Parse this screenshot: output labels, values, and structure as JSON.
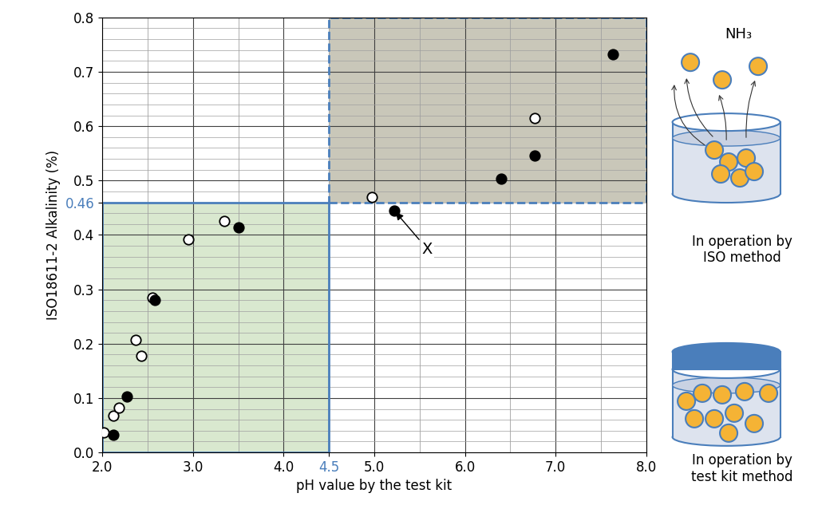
{
  "chart_data": {
    "type": "scatter",
    "x_label": "pH value by the test kit",
    "y_label": "ISO18611-2 Alkalinity (%)",
    "xlim": [
      2.0,
      8.0
    ],
    "ylim": [
      0.0,
      0.8
    ],
    "xticks": [
      2.0,
      3.0,
      4.0,
      4.5,
      5.0,
      6.0,
      7.0,
      8.0
    ],
    "yticks": [
      0.0,
      0.1,
      0.2,
      0.3,
      0.4,
      0.46,
      0.5,
      0.6,
      0.7,
      0.8
    ],
    "grid": true,
    "series": [
      {
        "marker": "open_circle",
        "color": "#000000",
        "x": [
          2.02,
          2.12,
          2.18,
          2.37,
          2.43,
          2.55,
          2.95,
          3.35,
          4.97,
          6.77
        ],
        "values": [
          0.037,
          0.067,
          0.082,
          0.207,
          0.178,
          0.285,
          0.392,
          0.425,
          0.47,
          0.615
        ]
      },
      {
        "marker": "filled_circle",
        "color": "#000000",
        "x": [
          2.12,
          2.27,
          2.58,
          3.5,
          5.22,
          6.4,
          6.77,
          7.63
        ],
        "values": [
          0.033,
          0.103,
          0.28,
          0.414,
          0.445,
          0.503,
          0.546,
          0.732
        ]
      }
    ],
    "regions": [
      {
        "xlim": [
          2.0,
          4.5
        ],
        "ylim": [
          0.0,
          0.46
        ],
        "color": "#d9e8cf",
        "line_style": "solid"
      },
      {
        "xlim": [
          4.5,
          8.0
        ],
        "ylim": [
          0.46,
          0.8
        ],
        "color": "#c9c7b9",
        "line_style": "dashed"
      }
    ],
    "annotations": [
      {
        "text": "X",
        "x": 5.22,
        "y": 0.445
      }
    ],
    "illustration": {
      "gas_label": "NH₃",
      "top_caption": "In operation by\nISO method",
      "bottom_caption": "In operation by\ntest kit method"
    }
  }
}
